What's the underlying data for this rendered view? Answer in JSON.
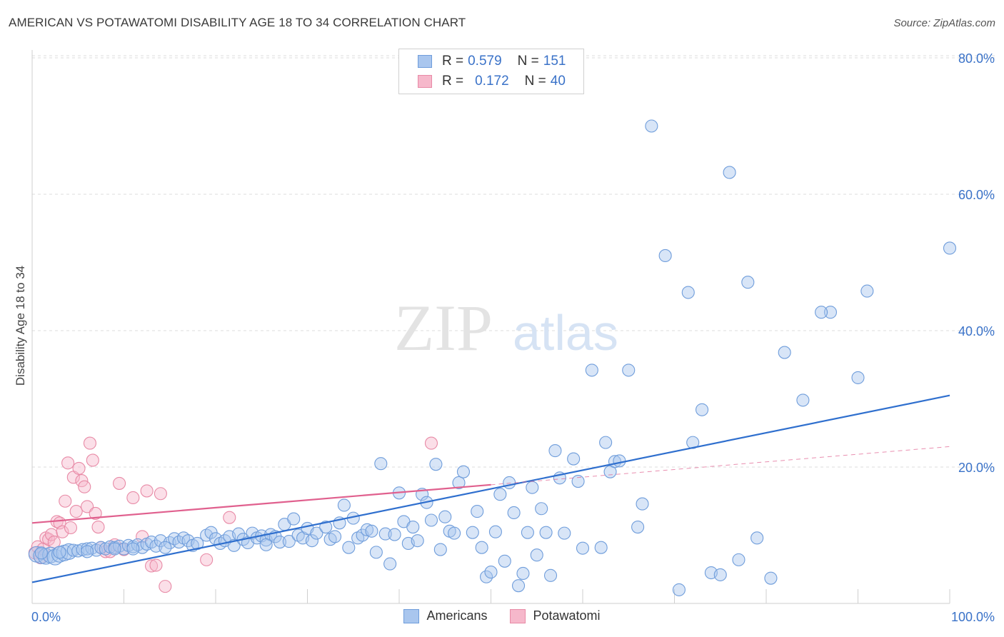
{
  "title": "AMERICAN VS POTAWATOMI DISABILITY AGE 18 TO 34 CORRELATION CHART",
  "source": "Source: ZipAtlas.com",
  "watermark": {
    "zip": "ZIP",
    "atlas": "atlas"
  },
  "legend": {
    "rows": [
      {
        "r_label": "R = ",
        "r_value": "0.579",
        "n_label": "N = ",
        "n_value": "151"
      },
      {
        "r_label": "R = ",
        "r_value": "0.172",
        "n_label": "N = ",
        "n_value": "40"
      }
    ]
  },
  "bottom_legend": {
    "americans": "Americans",
    "potawatomi": "Potawatomi"
  },
  "colors": {
    "americans_fill": "#a9c6ee",
    "americans_stroke": "#6f9ddb",
    "americans_line": "#2f6fce",
    "potawatomi_fill": "#f6b8cb",
    "potawatomi_stroke": "#e88aa6",
    "potawatomi_line": "#e0608e",
    "grid": "#dcdcdc",
    "tick_label": "#3a72c8"
  },
  "chart_data": {
    "type": "scatter",
    "title": "AMERICAN VS POTAWATOMI DISABILITY AGE 18 TO 34 CORRELATION CHART",
    "xlabel": "",
    "ylabel": "Disability Age 18 to 34",
    "xlim": [
      0,
      100
    ],
    "ylim": [
      0,
      85
    ],
    "x_tick_labels": [
      "0.0%",
      "100.0%"
    ],
    "y_ticks": [
      20,
      40,
      60,
      80
    ],
    "y_tick_labels": [
      "20.0%",
      "40.0%",
      "60.0%",
      "80.0%"
    ],
    "grid": true,
    "series": [
      {
        "name": "Americans",
        "trend": {
          "x": [
            0,
            100
          ],
          "y": [
            3.1,
            30.5
          ]
        },
        "points": [
          [
            0.5,
            7.2
          ],
          [
            1.0,
            7.0
          ],
          [
            1.5,
            6.9
          ],
          [
            2.0,
            7.1
          ],
          [
            2.5,
            6.8
          ],
          [
            3.0,
            7.2
          ],
          [
            3.5,
            7.4
          ],
          [
            4.0,
            7.6
          ],
          [
            4.5,
            7.8
          ],
          [
            5.0,
            7.7
          ],
          [
            5.5,
            7.9
          ],
          [
            6.0,
            8.0
          ],
          [
            6.5,
            8.1
          ],
          [
            7.0,
            7.8
          ],
          [
            7.5,
            8.2
          ],
          [
            8.0,
            8.0
          ],
          [
            8.5,
            8.3
          ],
          [
            9.0,
            8.2
          ],
          [
            9.5,
            8.4
          ],
          [
            10.0,
            8.0
          ],
          [
            10.5,
            8.5
          ],
          [
            11.0,
            8.3
          ],
          [
            11.5,
            8.6
          ],
          [
            12.0,
            8.2
          ],
          [
            12.5,
            8.7
          ],
          [
            13.0,
            9.0
          ],
          [
            13.5,
            8.4
          ],
          [
            14.0,
            9.2
          ],
          [
            15.0,
            8.9
          ],
          [
            15.5,
            9.5
          ],
          [
            16.0,
            9.0
          ],
          [
            16.5,
            9.6
          ],
          [
            17.0,
            9.2
          ],
          [
            17.5,
            8.5
          ],
          [
            18.0,
            8.8
          ],
          [
            19.0,
            10.0
          ],
          [
            19.5,
            10.4
          ],
          [
            20.0,
            9.5
          ],
          [
            20.5,
            8.8
          ],
          [
            21.0,
            9.2
          ],
          [
            21.5,
            9.8
          ],
          [
            22.0,
            8.5
          ],
          [
            22.5,
            10.2
          ],
          [
            23.0,
            9.4
          ],
          [
            23.5,
            8.9
          ],
          [
            24.0,
            10.3
          ],
          [
            24.5,
            9.6
          ],
          [
            25.0,
            9.9
          ],
          [
            25.5,
            9.3
          ],
          [
            26.0,
            10.1
          ],
          [
            26.5,
            9.8
          ],
          [
            27.0,
            9.0
          ],
          [
            27.5,
            11.6
          ],
          [
            28.0,
            9.1
          ],
          [
            28.5,
            12.4
          ],
          [
            29.0,
            10.0
          ],
          [
            29.5,
            9.6
          ],
          [
            30.0,
            11.0
          ],
          [
            30.5,
            9.2
          ],
          [
            31.0,
            10.3
          ],
          [
            32.0,
            11.2
          ],
          [
            32.5,
            9.4
          ],
          [
            33.0,
            9.8
          ],
          [
            33.5,
            11.8
          ],
          [
            34.0,
            14.4
          ],
          [
            34.5,
            8.2
          ],
          [
            35.0,
            12.5
          ],
          [
            35.5,
            9.6
          ],
          [
            36.0,
            10.0
          ],
          [
            36.5,
            10.8
          ],
          [
            37.0,
            10.6
          ],
          [
            37.5,
            7.5
          ],
          [
            38.0,
            20.5
          ],
          [
            38.5,
            10.2
          ],
          [
            39.0,
            5.8
          ],
          [
            39.5,
            10.1
          ],
          [
            40.0,
            16.2
          ],
          [
            40.5,
            12.0
          ],
          [
            41.0,
            8.8
          ],
          [
            41.5,
            11.2
          ],
          [
            42.0,
            9.2
          ],
          [
            42.5,
            16.0
          ],
          [
            43.0,
            14.8
          ],
          [
            43.5,
            12.2
          ],
          [
            44.0,
            20.4
          ],
          [
            44.5,
            7.9
          ],
          [
            45.0,
            12.7
          ],
          [
            45.5,
            10.6
          ],
          [
            46.0,
            10.3
          ],
          [
            46.5,
            17.7
          ],
          [
            47.0,
            19.3
          ],
          [
            48.0,
            10.4
          ],
          [
            48.5,
            13.5
          ],
          [
            49.0,
            8.2
          ],
          [
            49.5,
            3.9
          ],
          [
            50.0,
            4.6
          ],
          [
            50.5,
            10.5
          ],
          [
            51.0,
            16.0
          ],
          [
            51.5,
            6.2
          ],
          [
            52.0,
            17.7
          ],
          [
            52.5,
            13.3
          ],
          [
            53.0,
            2.6
          ],
          [
            53.5,
            4.4
          ],
          [
            54.0,
            10.4
          ],
          [
            54.5,
            17.0
          ],
          [
            55.0,
            7.1
          ],
          [
            55.5,
            13.9
          ],
          [
            56.0,
            10.4
          ],
          [
            56.5,
            4.1
          ],
          [
            57.0,
            22.4
          ],
          [
            57.5,
            18.4
          ],
          [
            58.0,
            10.3
          ],
          [
            59.0,
            21.2
          ],
          [
            59.5,
            17.9
          ],
          [
            60.0,
            8.1
          ],
          [
            61.0,
            34.2
          ],
          [
            62.0,
            8.2
          ],
          [
            62.5,
            23.6
          ],
          [
            63.0,
            19.3
          ],
          [
            63.5,
            20.8
          ],
          [
            64.0,
            20.9
          ],
          [
            65.0,
            34.2
          ],
          [
            66.0,
            11.2
          ],
          [
            66.5,
            14.6
          ],
          [
            67.5,
            70.0
          ],
          [
            69.0,
            51.0
          ],
          [
            70.5,
            2.0
          ],
          [
            71.5,
            45.6
          ],
          [
            72.0,
            23.6
          ],
          [
            73.0,
            28.4
          ],
          [
            74.0,
            4.5
          ],
          [
            75.0,
            4.2
          ],
          [
            76.0,
            63.2
          ],
          [
            77.0,
            6.4
          ],
          [
            78.0,
            47.1
          ],
          [
            79.0,
            9.6
          ],
          [
            80.5,
            3.7
          ],
          [
            82.0,
            36.8
          ],
          [
            84.0,
            29.8
          ],
          [
            87.0,
            42.7
          ],
          [
            90.0,
            33.1
          ],
          [
            91.0,
            45.8
          ],
          [
            100.0,
            52.1
          ],
          [
            86.0,
            42.7
          ],
          [
            25.5,
            8.6
          ],
          [
            3.0,
            7.5
          ],
          [
            1.0,
            7.4
          ],
          [
            6.0,
            7.6
          ],
          [
            9.0,
            8.0
          ],
          [
            11.0,
            8.0
          ],
          [
            14.5,
            8.2
          ]
        ]
      },
      {
        "name": "Potawatomi",
        "trend": {
          "x": [
            0,
            50
          ],
          "y": [
            11.8,
            17.4
          ]
        },
        "trend_dashed": {
          "x": [
            50,
            100
          ],
          "y": [
            17.4,
            23.0
          ]
        },
        "points": [
          [
            0.3,
            7.4
          ],
          [
            0.6,
            8.3
          ],
          [
            0.9,
            6.7
          ],
          [
            1.2,
            8.0
          ],
          [
            1.5,
            9.6
          ],
          [
            1.8,
            9.4
          ],
          [
            2.1,
            10.1
          ],
          [
            2.4,
            9.0
          ],
          [
            2.7,
            12.0
          ],
          [
            3.0,
            11.8
          ],
          [
            3.3,
            10.5
          ],
          [
            3.6,
            15.0
          ],
          [
            3.9,
            20.6
          ],
          [
            4.2,
            11.1
          ],
          [
            4.5,
            18.5
          ],
          [
            4.8,
            13.5
          ],
          [
            5.1,
            19.8
          ],
          [
            5.4,
            18.0
          ],
          [
            5.7,
            17.1
          ],
          [
            6.0,
            14.2
          ],
          [
            6.3,
            23.5
          ],
          [
            6.6,
            21.0
          ],
          [
            6.9,
            13.2
          ],
          [
            7.2,
            11.2
          ],
          [
            7.5,
            8.2
          ],
          [
            8.0,
            7.6
          ],
          [
            8.5,
            7.6
          ],
          [
            9.0,
            8.6
          ],
          [
            9.5,
            17.6
          ],
          [
            10.0,
            7.9
          ],
          [
            11.0,
            15.5
          ],
          [
            12.0,
            9.8
          ],
          [
            12.5,
            16.5
          ],
          [
            13.0,
            5.5
          ],
          [
            13.5,
            5.6
          ],
          [
            14.0,
            16.1
          ],
          [
            14.5,
            2.5
          ],
          [
            19.0,
            6.4
          ],
          [
            21.5,
            12.6
          ],
          [
            43.5,
            23.5
          ]
        ]
      }
    ]
  }
}
